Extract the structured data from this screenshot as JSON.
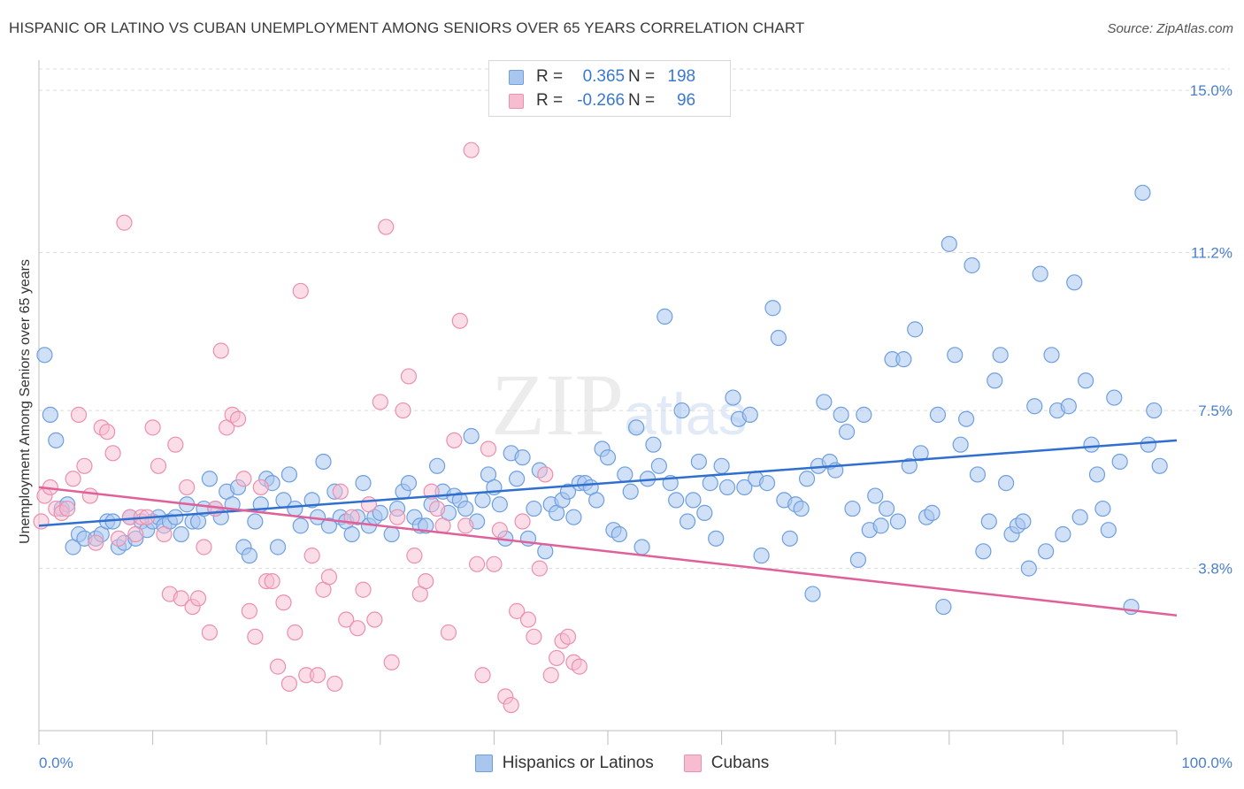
{
  "header": {
    "title": "HISPANIC OR LATINO VS CUBAN UNEMPLOYMENT AMONG SENIORS OVER 65 YEARS CORRELATION CHART",
    "source": "Source: ZipAtlas.com"
  },
  "watermark": {
    "main": "ZIP",
    "sub": "atlas"
  },
  "legend": {
    "rows": [
      {
        "r_label": "R =",
        "r_value": "0.365",
        "n_label": "N =",
        "n_value": "198"
      },
      {
        "r_label": "R =",
        "r_value": "-0.266",
        "n_label": "N =",
        "n_value": "96"
      }
    ]
  },
  "bottom_legend": {
    "blue_label": "Hispanics or Latinos",
    "pink_label": "Cubans"
  },
  "colors": {
    "blue_fill": "#a9c6ef",
    "blue_stroke": "#6e9fe0",
    "blue_line": "#2f6fd0",
    "pink_fill": "#f7bcd0",
    "pink_stroke": "#ec8fb0",
    "pink_line": "#e0609a",
    "tick_text": "#4a7fd0",
    "grid": "#dcdcdc"
  },
  "chart_data": {
    "type": "scatter",
    "title": "HISPANIC OR LATINO VS CUBAN UNEMPLOYMENT AMONG SENIORS OVER 65 YEARS CORRELATION CHART",
    "xlabel": "",
    "ylabel": "Unemployment Among Seniors over 65 years",
    "xlim": [
      0,
      100
    ],
    "ylim": [
      0,
      15.5
    ],
    "x_tick_labels": [
      "0.0%",
      "100.0%"
    ],
    "y_ticks": [
      3.8,
      7.5,
      11.2,
      15.0
    ],
    "y_tick_labels": [
      "3.8%",
      "7.5%",
      "11.2%",
      "15.0%"
    ],
    "grid": true,
    "legend_position": "top-center",
    "series": [
      {
        "name": "Hispanics or Latinos",
        "trend": {
          "x": [
            0,
            100
          ],
          "y": [
            4.8,
            6.8
          ]
        },
        "points": [
          [
            0.5,
            8.8
          ],
          [
            1,
            7.4
          ],
          [
            1.5,
            6.8
          ],
          [
            2,
            5.2
          ],
          [
            2.5,
            5.3
          ],
          [
            3,
            4.3
          ],
          [
            3.5,
            4.6
          ],
          [
            4,
            4.5
          ],
          [
            5,
            4.5
          ],
          [
            5.5,
            4.6
          ],
          [
            6,
            4.9
          ],
          [
            6.5,
            4.9
          ],
          [
            7,
            4.3
          ],
          [
            7.5,
            4.4
          ],
          [
            8,
            5.0
          ],
          [
            8.5,
            4.5
          ],
          [
            9,
            4.9
          ],
          [
            9.5,
            4.7
          ],
          [
            10,
            4.9
          ],
          [
            10.5,
            5.0
          ],
          [
            11,
            4.8
          ],
          [
            11.5,
            4.9
          ],
          [
            12,
            5.0
          ],
          [
            12.5,
            4.6
          ],
          [
            13,
            5.3
          ],
          [
            13.5,
            4.9
          ],
          [
            14,
            4.9
          ],
          [
            14.5,
            5.2
          ],
          [
            15,
            5.9
          ],
          [
            15.5,
            5.2
          ],
          [
            16,
            5.0
          ],
          [
            16.5,
            5.6
          ],
          [
            17,
            5.3
          ],
          [
            17.5,
            5.7
          ],
          [
            18,
            4.3
          ],
          [
            18.5,
            4.1
          ],
          [
            19,
            4.9
          ],
          [
            19.5,
            5.3
          ],
          [
            20,
            5.9
          ],
          [
            20.5,
            5.8
          ],
          [
            21,
            4.3
          ],
          [
            21.5,
            5.4
          ],
          [
            22,
            6.0
          ],
          [
            22.5,
            5.2
          ],
          [
            23,
            4.8
          ],
          [
            24,
            5.4
          ],
          [
            24.5,
            5.0
          ],
          [
            25,
            6.3
          ],
          [
            25.5,
            4.8
          ],
          [
            26,
            5.6
          ],
          [
            26.5,
            5.0
          ],
          [
            27,
            4.9
          ],
          [
            27.5,
            4.6
          ],
          [
            28,
            5.0
          ],
          [
            28.5,
            5.8
          ],
          [
            29,
            4.8
          ],
          [
            29.5,
            5.0
          ],
          [
            30,
            5.1
          ],
          [
            31,
            4.6
          ],
          [
            31.5,
            5.2
          ],
          [
            32,
            5.6
          ],
          [
            32.5,
            5.8
          ],
          [
            33,
            5.0
          ],
          [
            33.5,
            4.8
          ],
          [
            34,
            4.8
          ],
          [
            34.5,
            5.3
          ],
          [
            35,
            6.2
          ],
          [
            35.5,
            5.6
          ],
          [
            36,
            5.1
          ],
          [
            36.5,
            5.5
          ],
          [
            37,
            5.4
          ],
          [
            37.5,
            5.2
          ],
          [
            38,
            6.9
          ],
          [
            38.5,
            4.9
          ],
          [
            39,
            5.4
          ],
          [
            39.5,
            6.0
          ],
          [
            40,
            5.7
          ],
          [
            40.5,
            5.3
          ],
          [
            41,
            4.5
          ],
          [
            41.5,
            6.5
          ],
          [
            42,
            5.9
          ],
          [
            42.5,
            6.4
          ],
          [
            43,
            4.5
          ],
          [
            43.5,
            5.2
          ],
          [
            44,
            6.1
          ],
          [
            44.5,
            4.2
          ],
          [
            45,
            5.3
          ],
          [
            45.5,
            5.1
          ],
          [
            46,
            5.4
          ],
          [
            46.5,
            5.6
          ],
          [
            47,
            5.0
          ],
          [
            47.5,
            5.8
          ],
          [
            48,
            5.8
          ],
          [
            48.5,
            5.7
          ],
          [
            49,
            5.4
          ],
          [
            49.5,
            6.6
          ],
          [
            50,
            6.4
          ],
          [
            50.5,
            4.7
          ],
          [
            51,
            4.6
          ],
          [
            51.5,
            6.0
          ],
          [
            52,
            5.6
          ],
          [
            52.5,
            7.1
          ],
          [
            53,
            4.3
          ],
          [
            53.5,
            5.9
          ],
          [
            54,
            6.7
          ],
          [
            54.5,
            6.2
          ],
          [
            55,
            9.7
          ],
          [
            55.5,
            5.8
          ],
          [
            56,
            5.4
          ],
          [
            56.5,
            7.5
          ],
          [
            57,
            4.9
          ],
          [
            57.5,
            5.4
          ],
          [
            58,
            6.3
          ],
          [
            58.5,
            5.1
          ],
          [
            59,
            5.8
          ],
          [
            59.5,
            4.5
          ],
          [
            60,
            6.2
          ],
          [
            60.5,
            5.7
          ],
          [
            61,
            7.8
          ],
          [
            61.5,
            7.3
          ],
          [
            62,
            5.7
          ],
          [
            62.5,
            7.4
          ],
          [
            63,
            5.9
          ],
          [
            63.5,
            4.1
          ],
          [
            64,
            5.8
          ],
          [
            64.5,
            9.9
          ],
          [
            65,
            9.2
          ],
          [
            65.5,
            5.4
          ],
          [
            66,
            4.5
          ],
          [
            66.5,
            5.3
          ],
          [
            67,
            5.2
          ],
          [
            67.5,
            5.9
          ],
          [
            68,
            3.2
          ],
          [
            68.5,
            6.2
          ],
          [
            69,
            7.7
          ],
          [
            69.5,
            6.3
          ],
          [
            70,
            6.1
          ],
          [
            70.5,
            7.4
          ],
          [
            71,
            7.0
          ],
          [
            71.5,
            5.2
          ],
          [
            72,
            4.0
          ],
          [
            72.5,
            7.4
          ],
          [
            73,
            4.7
          ],
          [
            73.5,
            5.5
          ],
          [
            74,
            4.8
          ],
          [
            74.5,
            5.2
          ],
          [
            75,
            8.7
          ],
          [
            75.5,
            4.9
          ],
          [
            76,
            8.7
          ],
          [
            76.5,
            6.2
          ],
          [
            77,
            9.4
          ],
          [
            77.5,
            6.5
          ],
          [
            78,
            5.0
          ],
          [
            78.5,
            5.1
          ],
          [
            79,
            7.4
          ],
          [
            79.5,
            2.9
          ],
          [
            80,
            11.4
          ],
          [
            80.5,
            8.8
          ],
          [
            81,
            6.7
          ],
          [
            81.5,
            7.3
          ],
          [
            82,
            10.9
          ],
          [
            82.5,
            6.0
          ],
          [
            83,
            4.2
          ],
          [
            83.5,
            4.9
          ],
          [
            84,
            8.2
          ],
          [
            84.5,
            8.8
          ],
          [
            85,
            5.8
          ],
          [
            85.5,
            4.6
          ],
          [
            86,
            4.8
          ],
          [
            86.5,
            4.9
          ],
          [
            87,
            3.8
          ],
          [
            87.5,
            7.6
          ],
          [
            88,
            10.7
          ],
          [
            88.5,
            4.2
          ],
          [
            89,
            8.8
          ],
          [
            89.5,
            7.5
          ],
          [
            90,
            4.6
          ],
          [
            90.5,
            7.6
          ],
          [
            91,
            10.5
          ],
          [
            91.5,
            5.0
          ],
          [
            92,
            8.2
          ],
          [
            92.5,
            6.7
          ],
          [
            93,
            6.0
          ],
          [
            93.5,
            5.2
          ],
          [
            94,
            4.7
          ],
          [
            94.5,
            7.8
          ],
          [
            95,
            6.3
          ],
          [
            96,
            2.9
          ],
          [
            97,
            12.6
          ],
          [
            97.5,
            6.7
          ],
          [
            98,
            7.5
          ],
          [
            98.5,
            6.2
          ]
        ]
      },
      {
        "name": "Cubans",
        "trend": {
          "x": [
            0,
            100
          ],
          "y": [
            5.7,
            2.7
          ]
        },
        "points": [
          [
            0.2,
            4.9
          ],
          [
            0.5,
            5.5
          ],
          [
            1,
            5.7
          ],
          [
            1.5,
            5.2
          ],
          [
            2,
            5.1
          ],
          [
            2.5,
            5.2
          ],
          [
            3,
            5.9
          ],
          [
            3.5,
            7.4
          ],
          [
            4,
            6.2
          ],
          [
            4.5,
            5.5
          ],
          [
            5,
            4.4
          ],
          [
            5.5,
            7.1
          ],
          [
            6,
            7.0
          ],
          [
            6.5,
            6.5
          ],
          [
            7,
            4.5
          ],
          [
            7.5,
            11.9
          ],
          [
            8,
            5.0
          ],
          [
            8.5,
            4.6
          ],
          [
            9,
            5.0
          ],
          [
            9.5,
            5.0
          ],
          [
            10,
            7.1
          ],
          [
            10.5,
            6.2
          ],
          [
            11,
            4.6
          ],
          [
            11.5,
            3.2
          ],
          [
            12,
            6.7
          ],
          [
            12.5,
            3.1
          ],
          [
            13,
            5.7
          ],
          [
            13.5,
            2.9
          ],
          [
            14,
            3.1
          ],
          [
            14.5,
            4.3
          ],
          [
            15,
            2.3
          ],
          [
            15.5,
            5.2
          ],
          [
            16,
            8.9
          ],
          [
            16.5,
            7.1
          ],
          [
            17,
            7.4
          ],
          [
            17.5,
            7.3
          ],
          [
            18,
            5.9
          ],
          [
            18.5,
            2.8
          ],
          [
            19,
            2.2
          ],
          [
            19.5,
            5.7
          ],
          [
            20,
            3.5
          ],
          [
            20.5,
            3.5
          ],
          [
            21,
            1.5
          ],
          [
            21.5,
            3.0
          ],
          [
            22,
            1.1
          ],
          [
            22.5,
            2.3
          ],
          [
            23,
            10.3
          ],
          [
            23.5,
            1.3
          ],
          [
            24,
            4.1
          ],
          [
            24.5,
            1.3
          ],
          [
            25,
            3.3
          ],
          [
            25.5,
            3.6
          ],
          [
            26,
            1.1
          ],
          [
            26.5,
            5.6
          ],
          [
            27,
            2.6
          ],
          [
            27.5,
            5.0
          ],
          [
            28,
            2.4
          ],
          [
            28.5,
            3.3
          ],
          [
            29,
            5.3
          ],
          [
            29.5,
            2.6
          ],
          [
            30,
            7.7
          ],
          [
            30.5,
            11.8
          ],
          [
            31,
            1.6
          ],
          [
            31.5,
            5.0
          ],
          [
            32,
            7.5
          ],
          [
            32.5,
            8.3
          ],
          [
            33,
            4.1
          ],
          [
            33.5,
            3.2
          ],
          [
            34,
            3.5
          ],
          [
            34.5,
            5.6
          ],
          [
            35,
            5.2
          ],
          [
            35.5,
            4.8
          ],
          [
            36,
            2.3
          ],
          [
            36.5,
            6.8
          ],
          [
            37,
            9.6
          ],
          [
            37.5,
            4.8
          ],
          [
            38,
            13.6
          ],
          [
            38.5,
            3.9
          ],
          [
            39,
            1.3
          ],
          [
            39.5,
            6.6
          ],
          [
            40,
            3.9
          ],
          [
            40.5,
            4.7
          ],
          [
            41,
            0.8
          ],
          [
            41.5,
            0.6
          ],
          [
            42,
            2.8
          ],
          [
            42.5,
            4.9
          ],
          [
            43,
            2.6
          ],
          [
            43.5,
            2.2
          ],
          [
            44,
            3.8
          ],
          [
            44.5,
            6.0
          ],
          [
            45,
            1.3
          ],
          [
            45.5,
            1.7
          ],
          [
            46,
            2.1
          ],
          [
            46.5,
            2.2
          ],
          [
            47,
            1.6
          ],
          [
            47.5,
            1.5
          ]
        ]
      }
    ]
  }
}
